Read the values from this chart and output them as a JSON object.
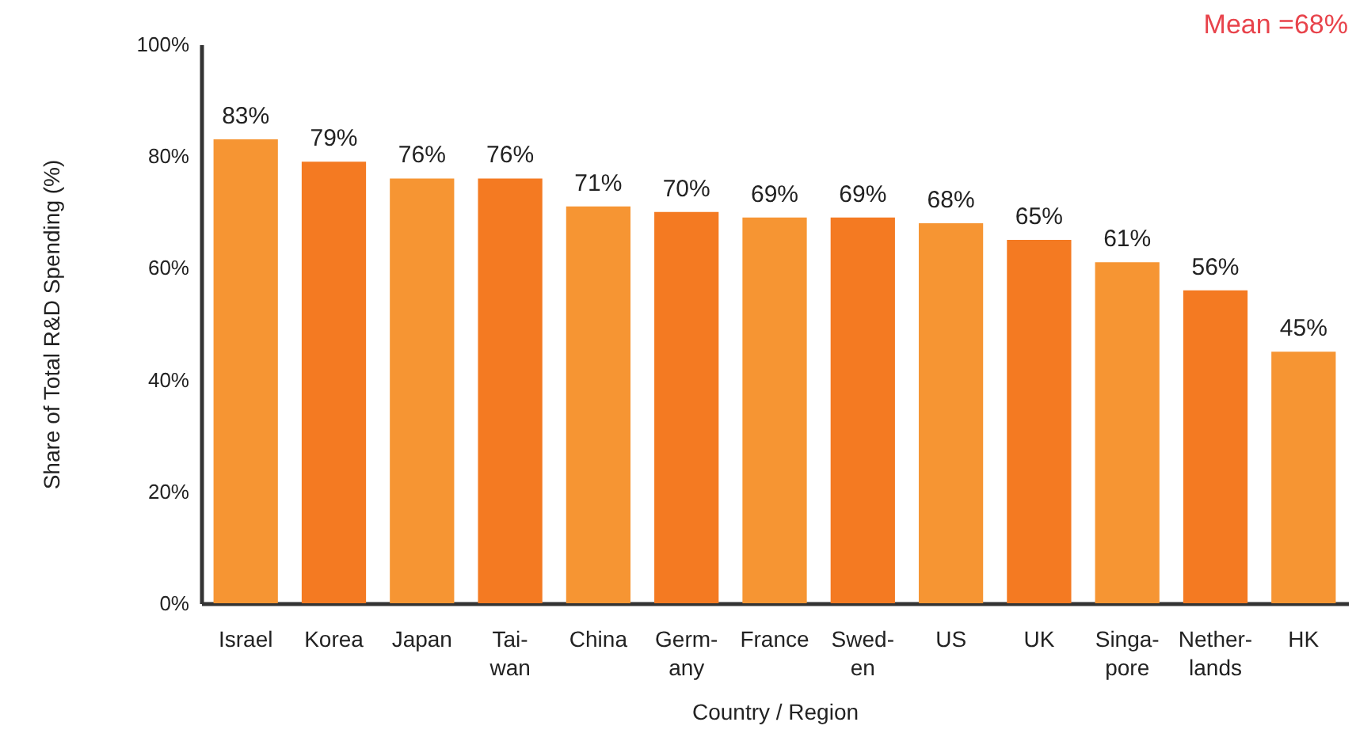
{
  "chart_data": {
    "type": "bar",
    "xlabel": "Country / Region",
    "ylabel": "Share of Total R&D Spending (%)",
    "annotations": [
      "Mean =68%"
    ],
    "categories": [
      "Israel",
      "Korea",
      "Japan",
      "Tai-\nwan",
      "China",
      "Germ-\nany",
      "France",
      "Swed-\nen",
      "US",
      "UK",
      "Singa-\npore",
      "Nether-\nlands",
      "HK"
    ],
    "values": [
      83,
      79,
      76,
      76,
      71,
      70,
      69,
      69,
      68,
      65,
      61,
      56,
      45
    ],
    "value_labels": [
      "83%",
      "79%",
      "76%",
      "76%",
      "71%",
      "70%",
      "69%",
      "69%",
      "68%",
      "65%",
      "61%",
      "56%",
      "45%"
    ],
    "colors": [
      "#f69533",
      "#f47a22",
      "#f69533",
      "#f47a22",
      "#f69533",
      "#f47a22",
      "#f69533",
      "#f47a22",
      "#f69533",
      "#f47a22",
      "#f69533",
      "#f47a22",
      "#f69533"
    ],
    "ylim": [
      0,
      100
    ],
    "yticks": [
      {
        "value": 0,
        "label": "0%"
      },
      {
        "value": 20,
        "label": "20%"
      },
      {
        "value": 40,
        "label": "40%"
      },
      {
        "value": 60,
        "label": "60%"
      },
      {
        "value": 80,
        "label": "80%"
      },
      {
        "value": 100,
        "label": "100%"
      }
    ],
    "grid": false
  }
}
